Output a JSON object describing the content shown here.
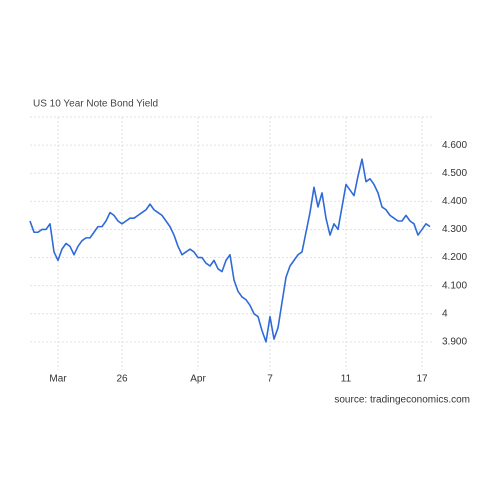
{
  "chart_data": {
    "type": "line",
    "title": "US 10 Year Note Bond Yield",
    "source": "source: tradingeconomics.com",
    "categories": [
      null,
      null,
      null,
      null,
      null,
      null,
      null,
      "Mar",
      null,
      null,
      null,
      null,
      null,
      null,
      null,
      null,
      null,
      null,
      null,
      null,
      null,
      null,
      null,
      "26",
      null,
      null,
      null,
      null,
      null,
      null,
      null,
      null,
      null,
      null,
      null,
      null,
      null,
      null,
      null,
      null,
      null,
      null,
      "Apr",
      null,
      null,
      null,
      null,
      null,
      null,
      null,
      null,
      null,
      null,
      null,
      null,
      null,
      null,
      null,
      null,
      null,
      "7",
      null,
      null,
      null,
      null,
      null,
      null,
      null,
      null,
      null,
      null,
      null,
      null,
      null,
      null,
      null,
      null,
      null,
      null,
      "11",
      null,
      null,
      null,
      null,
      null,
      null,
      null,
      null,
      null,
      null,
      null,
      null,
      null,
      null,
      null,
      null,
      null,
      null,
      "17",
      null,
      null
    ],
    "values": [
      4.33,
      4.29,
      4.29,
      4.3,
      4.3,
      4.32,
      4.22,
      4.19,
      4.23,
      4.25,
      4.24,
      4.21,
      4.24,
      4.26,
      4.27,
      4.27,
      4.29,
      4.31,
      4.31,
      4.33,
      4.36,
      4.35,
      4.33,
      4.32,
      4.33,
      4.34,
      4.34,
      4.35,
      4.36,
      4.37,
      4.39,
      4.37,
      4.36,
      4.35,
      4.33,
      4.31,
      4.28,
      4.24,
      4.21,
      4.22,
      4.23,
      4.22,
      4.2,
      4.2,
      4.18,
      4.17,
      4.19,
      4.16,
      4.15,
      4.19,
      4.21,
      4.12,
      4.08,
      4.06,
      4.05,
      4.03,
      4.0,
      3.99,
      3.94,
      3.9,
      3.99,
      3.91,
      3.95,
      4.04,
      4.13,
      4.17,
      4.19,
      4.21,
      4.22,
      4.29,
      4.36,
      4.45,
      4.38,
      4.43,
      4.34,
      4.28,
      4.32,
      4.3,
      4.38,
      4.46,
      4.44,
      4.42,
      4.49,
      4.55,
      4.47,
      4.48,
      4.46,
      4.43,
      4.38,
      4.37,
      4.35,
      4.34,
      4.33,
      4.33,
      4.35,
      4.33,
      4.32,
      4.28,
      4.3,
      4.32,
      4.31
    ],
    "color": "#2f6bd8",
    "ylim": [
      3.8,
      4.7
    ],
    "yticks": [
      {
        "value": 3.9,
        "label": "3.900"
      },
      4,
      {
        "value": 4.1,
        "label": "4.100"
      },
      {
        "value": 4.2,
        "label": "4.200"
      },
      {
        "value": 4.3,
        "label": "4.300"
      },
      {
        "value": 4.4,
        "label": "4.400"
      },
      {
        "value": 4.5,
        "label": "4.500"
      },
      {
        "value": 4.6,
        "label": "4.600"
      }
    ],
    "grid": true
  }
}
